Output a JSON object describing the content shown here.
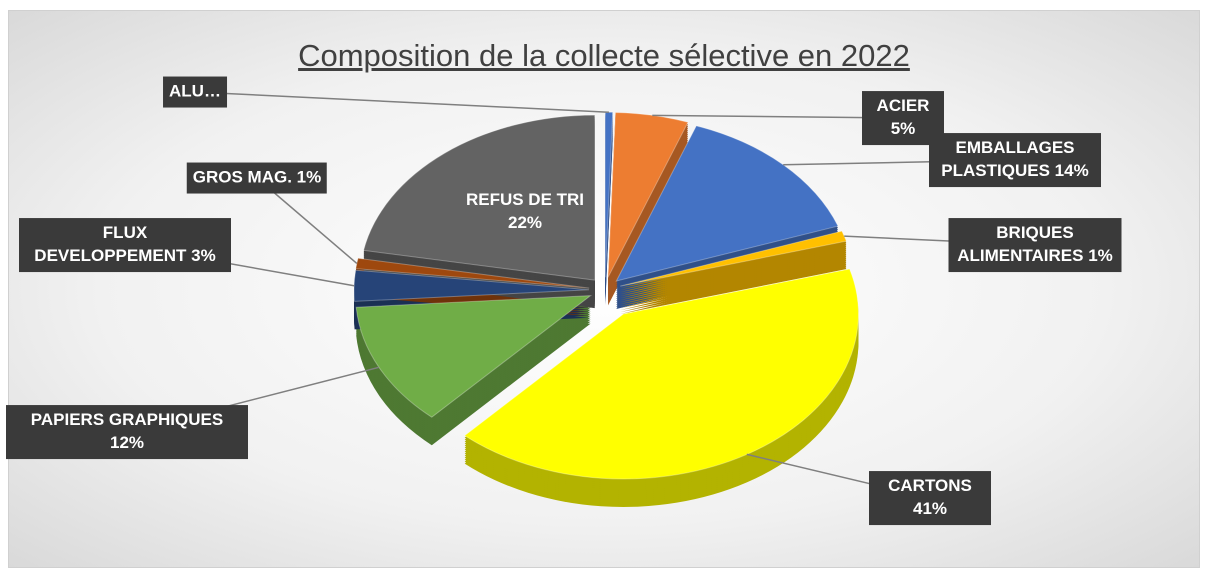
{
  "chart_data": {
    "type": "pie",
    "title": "Composition de la collecte sélective en 2022",
    "categories": [
      "ALU…",
      "ACIER",
      "EMBALLAGES PLASTIQUES",
      "BRIQUES ALIMENTAIRES",
      "CARTONS",
      "PAPIERS GRAPHIQUES",
      "FLUX DEVELOPPEMENT",
      "GROS MAG.",
      "REFUS DE TRI"
    ],
    "values": [
      0.5,
      5,
      14,
      1,
      41,
      12,
      3,
      1,
      22
    ],
    "value_labels": [
      null,
      "5%",
      "14%",
      "1%",
      "41%",
      "12%",
      "3%",
      "1%",
      "22%"
    ],
    "colors": [
      "#4472c4",
      "#ed7d31",
      "#4472c4",
      "#ffc000",
      "#ffff00",
      "#70ad47",
      "#264478",
      "#9e480e",
      "#636363"
    ]
  }
}
